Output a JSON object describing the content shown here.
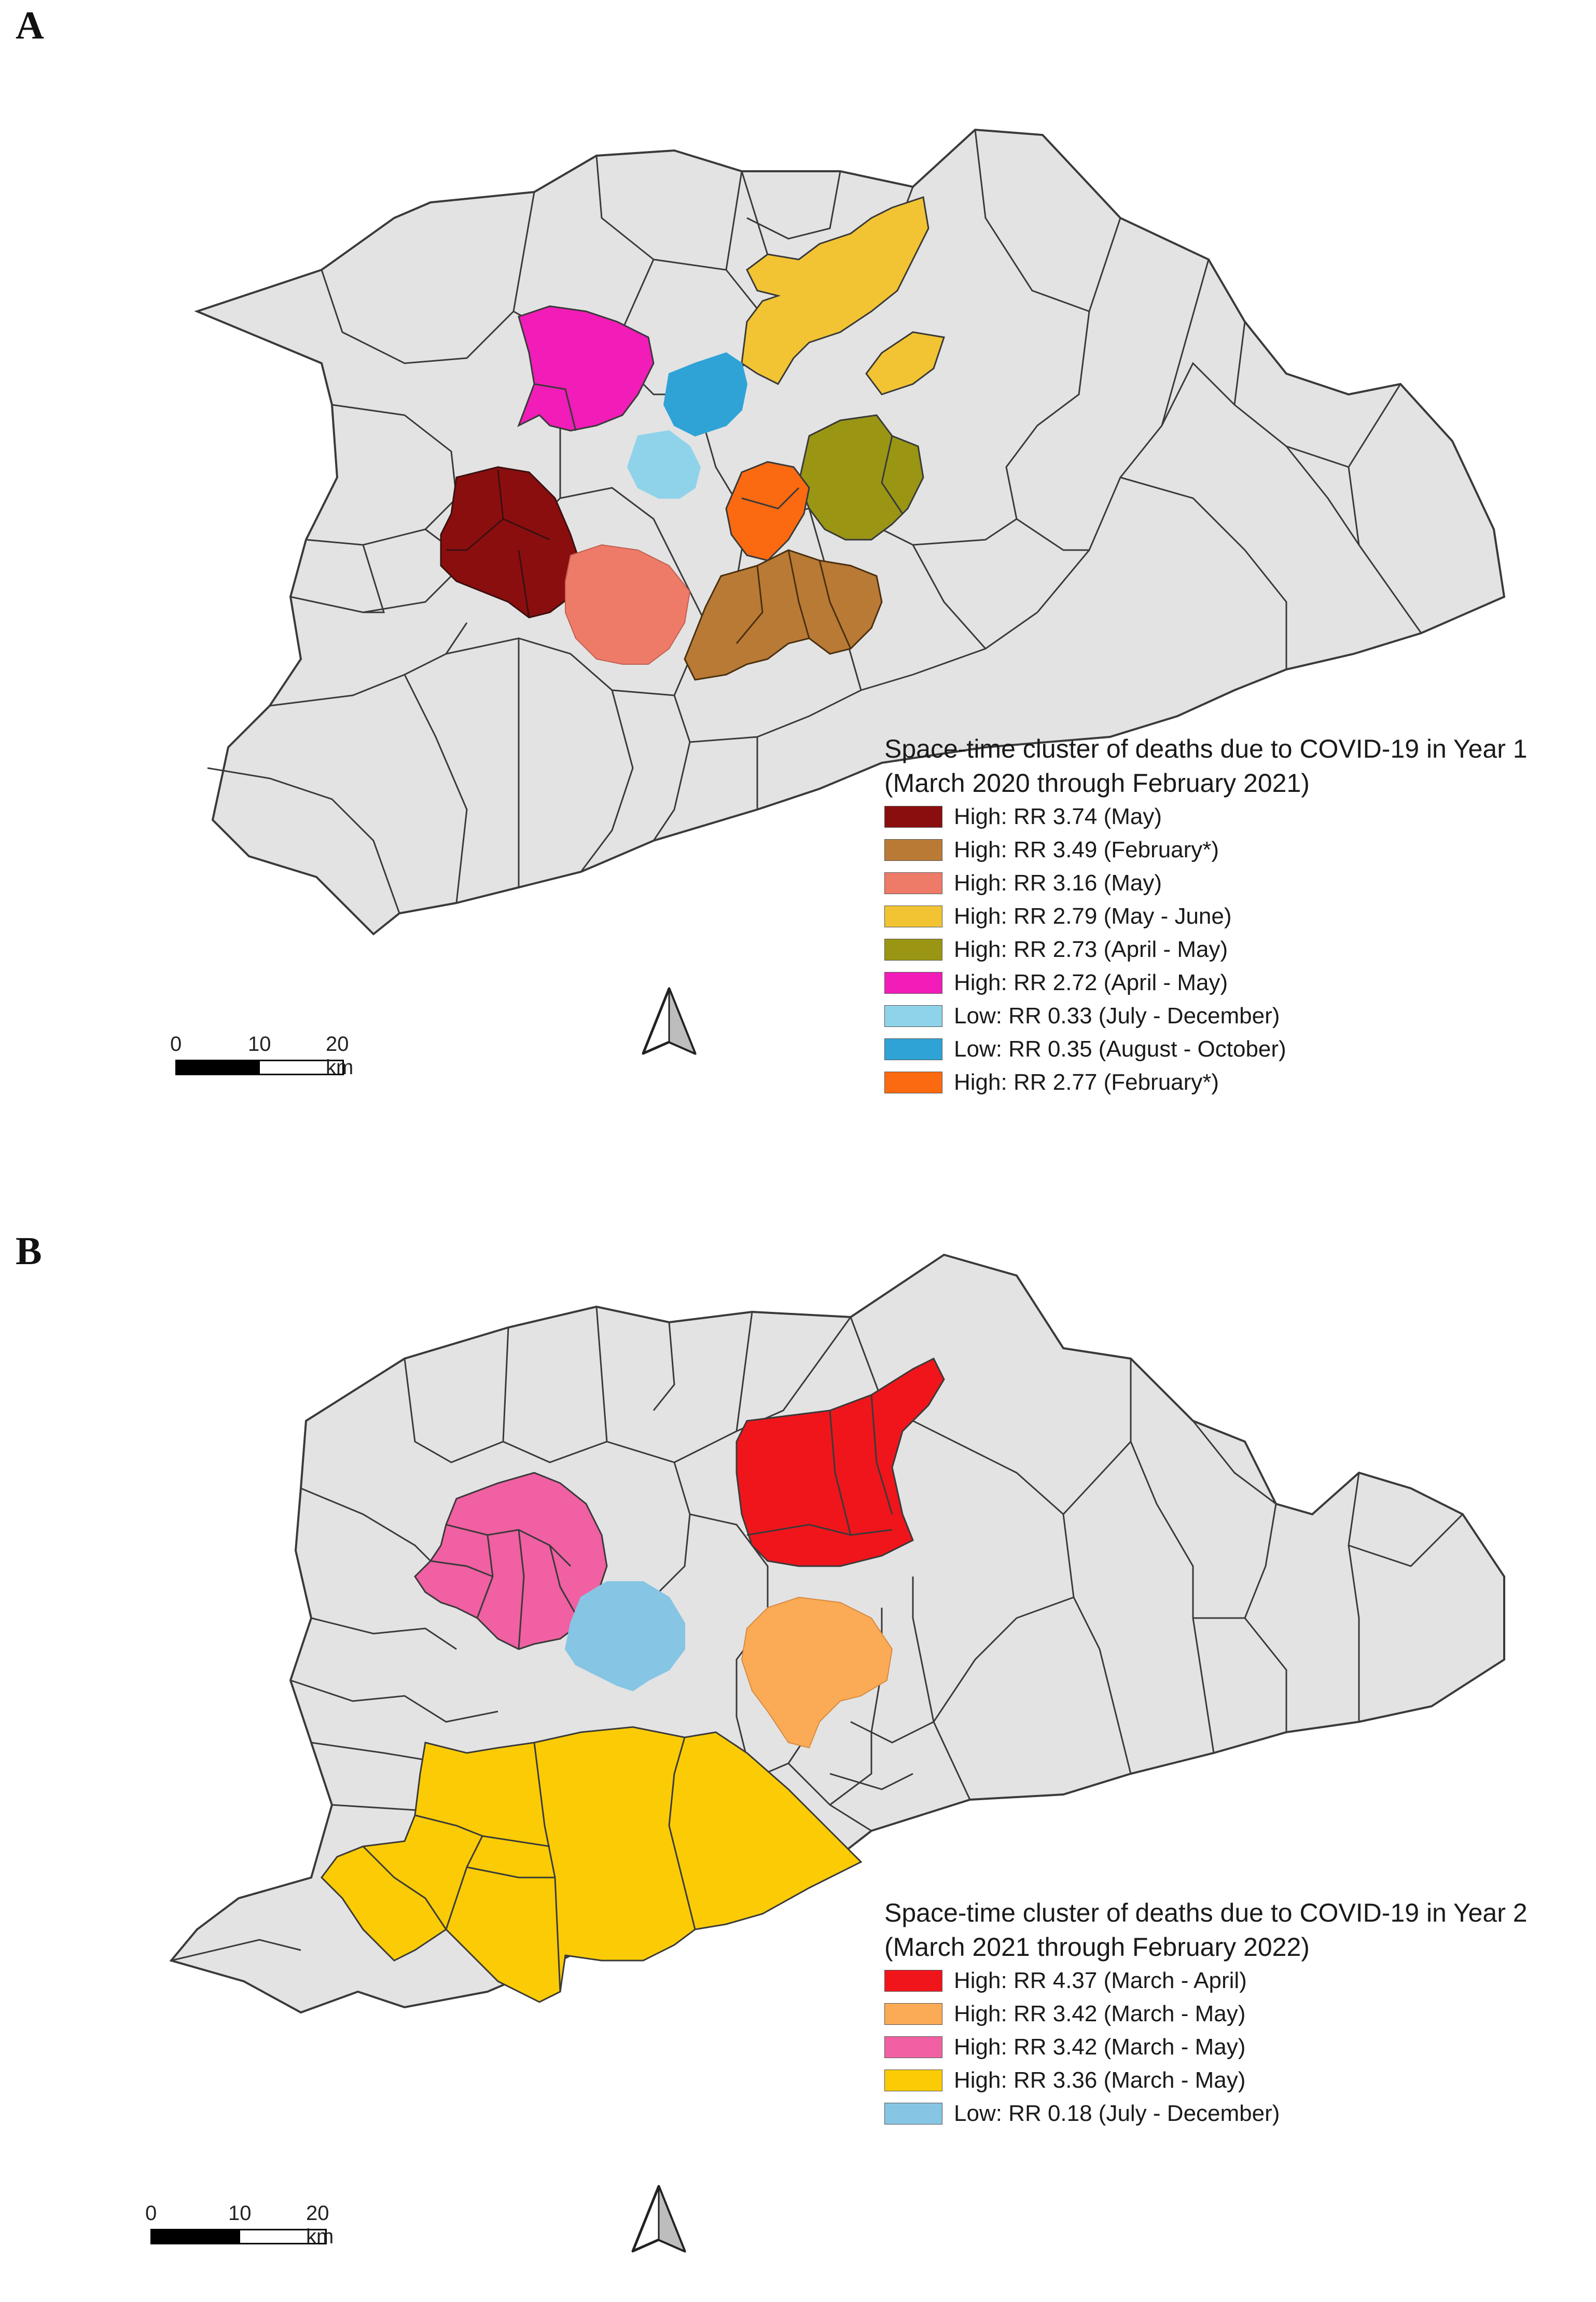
{
  "panels": [
    {
      "letter": "A",
      "legend": {
        "title_line1": "Space-time cluster of deaths due to COVID-19 in Year 1",
        "title_line2": "(March 2020 through February 2021)",
        "items": [
          {
            "color": "#8b0e0e",
            "label": "High: RR 3.74 (May)"
          },
          {
            "color": "#b97a35",
            "label": "High: RR 3.49 (February*)"
          },
          {
            "color": "#ee7b68",
            "label": "High: RR 3.16 (May)"
          },
          {
            "color": "#f2c434",
            "label": "High: RR 2.79 (May - June)"
          },
          {
            "color": "#9a9614",
            "label": "High: RR 2.73 (April - May)"
          },
          {
            "color": "#f21cb8",
            "label": "High: RR 2.72 (April - May)"
          },
          {
            "color": "#8fd3ea",
            "label": "Low: RR 0.33 (July - December)"
          },
          {
            "color": "#2fa3d6",
            "label": "Low: RR 0.35 (August - October)"
          },
          {
            "color": "#fb6a10",
            "label": "High: RR 2.77 (February*)"
          }
        ]
      },
      "scalebar": {
        "labels": [
          "0",
          "10",
          "20 km"
        ]
      }
    },
    {
      "letter": "B",
      "legend": {
        "title_line1": "Space-time cluster of deaths due to COVID-19 in Year 2",
        "title_line2": "(March 2021 through February 2022)",
        "items": [
          {
            "color": "#f0151b",
            "label": "High: RR 4.37 (March - April)"
          },
          {
            "color": "#fbaa55",
            "label": "High: RR 3.42 (March - May)"
          },
          {
            "color": "#f060a2",
            "label": "High: RR 3.42 (March - May)"
          },
          {
            "color": "#fbcc05",
            "label": "High: RR 3.36 (March - May)"
          },
          {
            "color": "#86c5e4",
            "label": "Low: RR 0.18 (July - December)"
          }
        ]
      },
      "scalebar": {
        "labels": [
          "0",
          "10",
          "20 km"
        ]
      }
    }
  ],
  "map_style": {
    "background_fill": "#e3e3e3",
    "boundary_stroke": "#3a3a3a"
  }
}
